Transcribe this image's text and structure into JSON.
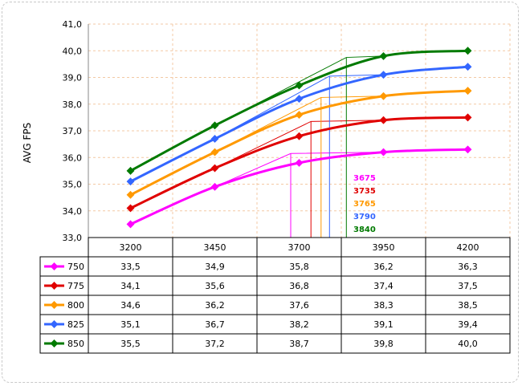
{
  "chart_data": {
    "type": "line",
    "ylabel": "AVG FPS",
    "ylim": [
      33.0,
      41.0
    ],
    "y_ticks": [
      "33,0",
      "34,0",
      "35,0",
      "36,0",
      "37,0",
      "38,0",
      "39,0",
      "40,0",
      "41,0"
    ],
    "categories": [
      "3200",
      "3450",
      "3700",
      "3950",
      "4200"
    ],
    "grid": true,
    "legend": "table-left",
    "series": [
      {
        "name": "750",
        "color": "#ff00ff",
        "values": [
          33.5,
          34.9,
          35.8,
          36.2,
          36.3
        ],
        "labels": [
          "33,5",
          "34,9",
          "35,8",
          "36,2",
          "36,3"
        ],
        "threshold": 3675,
        "threshold_label": "3675"
      },
      {
        "name": "775",
        "color": "#e00000",
        "values": [
          34.1,
          35.6,
          36.8,
          37.4,
          37.5
        ],
        "labels": [
          "34,1",
          "35,6",
          "36,8",
          "37,4",
          "37,5"
        ],
        "threshold": 3735,
        "threshold_label": "3735"
      },
      {
        "name": "800",
        "color": "#ff9900",
        "values": [
          34.6,
          36.2,
          37.6,
          38.3,
          38.5
        ],
        "labels": [
          "34,6",
          "36,2",
          "37,6",
          "38,3",
          "38,5"
        ],
        "threshold": 3765,
        "threshold_label": "3765"
      },
      {
        "name": "825",
        "color": "#3366ff",
        "values": [
          35.1,
          36.7,
          38.2,
          39.1,
          39.4
        ],
        "labels": [
          "35,1",
          "36,7",
          "38,2",
          "39,1",
          "39,4"
        ],
        "threshold": 3790,
        "threshold_label": "3790"
      },
      {
        "name": "850",
        "color": "#007a00",
        "values": [
          35.5,
          37.2,
          38.7,
          39.8,
          40.0
        ],
        "labels": [
          "35,5",
          "37,2",
          "38,7",
          "39,8",
          "40,0"
        ],
        "threshold": 3840,
        "threshold_label": "3840"
      }
    ]
  }
}
